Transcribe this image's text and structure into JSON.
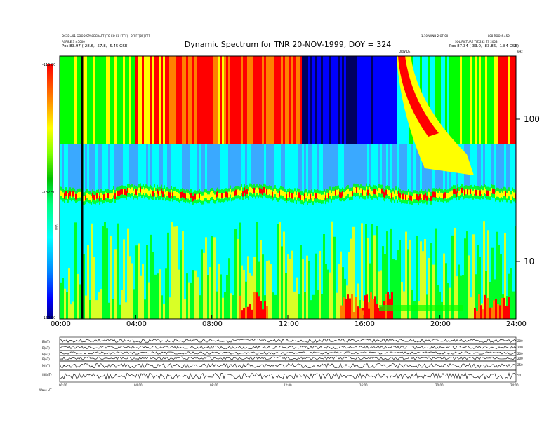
{
  "header": {
    "top_left_1": "DC3D=01 GOOD SPACECRAFT (TO EO E0 FFFF)  -  0FFFF[0F] FFF",
    "top_left_2": "ASPIRE 3 ±5000",
    "top_left_3": "Pos   83.97 (-28.6, -57.8, -5.45 GSE)",
    "top_right_1": "1.10 WIND 2 OF 00",
    "top_right_2": "L08 ROOM ±50",
    "top_right_3": "SOL PICTURE  TIZ 232 TS 2003",
    "top_right_4": "Pos   87.34 (-33.0, -83.86, -1.84 GSE)",
    "label_drmid": "DRWIDE",
    "unit_khz": "kHz"
  },
  "chart_data": {
    "type": "heatmap",
    "title": "Dynamic Spectrum for TNR 20-NOV-1999, DOY = 324",
    "x_ticks": [
      "00:00",
      "04:00",
      "08:00",
      "12:00",
      "16:00",
      "20:00",
      "24:00"
    ],
    "y_ticks": [
      "100",
      "10"
    ],
    "y_scale": "log",
    "colorbar_ticks": [
      "-115.00",
      "-132.50",
      "-150.00"
    ],
    "colorbar_label": "TNR",
    "colorbar_range": [
      -150.0,
      -115.0
    ],
    "colors": {
      "bg": "#00ffff",
      "red": "#ff0000",
      "orange": "#ff8000",
      "yellow": "#ffff00",
      "green": "#00ff00",
      "blue": "#0000ff",
      "navy": "#000060"
    }
  },
  "lower_panel": {
    "labels": [
      "B(nT)",
      "B(nT)",
      "B(nT)",
      "B(nT)",
      "Ν(nT)",
      "|B|(nT)"
    ],
    "right_labels": [
      "200",
      "200",
      "200",
      "200",
      "250",
      "50"
    ],
    "x_ticks": [
      "00:00",
      "04:00",
      "08:00",
      "12:00",
      "16:00",
      "20:00",
      "24:00"
    ],
    "footer": "Wake    UT"
  }
}
